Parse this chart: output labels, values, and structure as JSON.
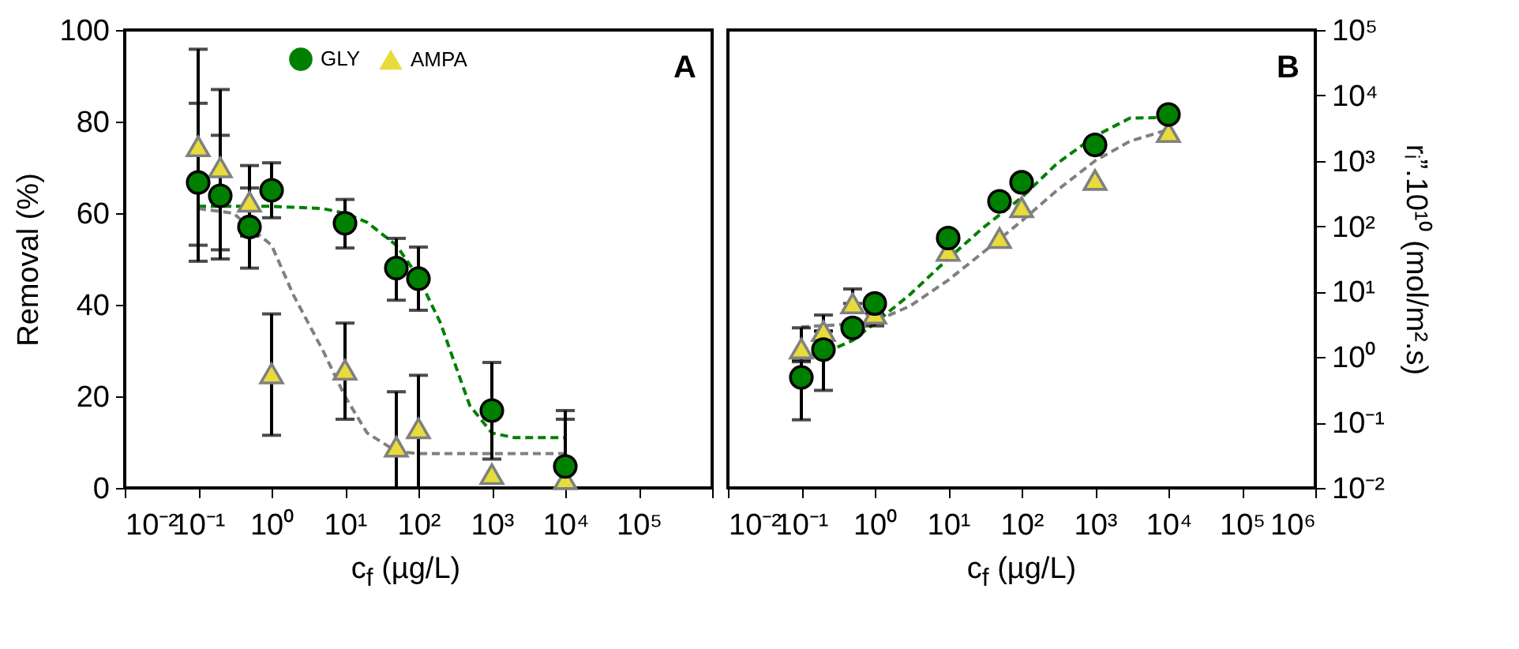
{
  "chart_data": [
    {
      "type": "scatter",
      "xlabel": "c$_{f}$ (µg/L)",
      "ylabel": "Removal (%)",
      "x": [
        0.1,
        0.2,
        0.5,
        1,
        10,
        50,
        100,
        1000,
        10000
      ],
      "series": [
        {
          "name": "GLY",
          "marker": "circle",
          "color": "#008000",
          "values": [
            66.7,
            63.8,
            57,
            65,
            57.8,
            48,
            45.7,
            16.9,
            4.7
          ],
          "errors": [
            [
              53,
              84
            ],
            [
              52,
              77
            ],
            [
              48,
              65.5
            ],
            [
              59,
              71
            ],
            [
              52.4,
              63
            ],
            [
              41,
              54.5
            ],
            [
              38.8,
              52.6
            ],
            [
              6.3,
              27.4
            ],
            [
              0,
              15
            ]
          ]
        },
        {
          "name": "AMPA",
          "marker": "triangle",
          "color": "#e8dc3c",
          "values": [
            74.6,
            70,
            62.5,
            25,
            25.8,
            9,
            13,
            3,
            1.9
          ],
          "errors": [
            [
              49.5,
              95.8
            ],
            [
              50,
              87
            ],
            [
              55,
              70.4
            ],
            [
              11.5,
              38
            ],
            [
              15,
              36
            ],
            [
              0,
              21
            ],
            [
              0,
              24.6
            ],
            null,
            [
              0,
              16.9
            ]
          ]
        },
        {
          "type": "line",
          "line_style": "dashed",
          "color": "#008000",
          "x": [
            0.1,
            1,
            5,
            10,
            20,
            50,
            100,
            200,
            300,
            500,
            1000,
            2000,
            10000
          ],
          "values": [
            61.5,
            61.5,
            61,
            60,
            58,
            53,
            46,
            36,
            28,
            18,
            12,
            11,
            11
          ]
        },
        {
          "type": "line",
          "line_style": "dashed",
          "color": "#808080",
          "x": [
            0.1,
            0.3,
            0.5,
            1,
            2,
            5,
            10,
            20,
            50,
            100,
            1000,
            10000
          ],
          "values": [
            61,
            60,
            57,
            53,
            42,
            30,
            20,
            12,
            8,
            7.5,
            7.5,
            7.5
          ]
        }
      ],
      "xlim": [
        0.01,
        1000000
      ],
      "xticks": [
        {
          "value": 0.01,
          "label": "10⁻²"
        },
        {
          "value": 0.1,
          "label": "10⁻¹"
        },
        {
          "value": 1,
          "label": "10⁰"
        },
        {
          "value": 10,
          "label": "10¹"
        },
        {
          "value": 100,
          "label": "10²"
        },
        {
          "value": 1000,
          "label": "10³"
        },
        {
          "value": 10000,
          "label": "10⁴"
        },
        {
          "value": 100000,
          "label": "10⁵"
        },
        {
          "value": 1000000,
          "label": null
        }
      ],
      "ylim": [
        0,
        100
      ],
      "yticks": [
        0,
        20,
        40,
        60,
        80,
        100
      ],
      "log": "x",
      "legend": "top",
      "annotations": [
        "A"
      ]
    },
    {
      "type": "scatter",
      "xlabel": "c$_{f}$ (µg/L)",
      "ylabel": "rᵢ”.10¹⁰ (mol/m².s)",
      "x": [
        0.1,
        0.2,
        0.5,
        1,
        10,
        50,
        100,
        1000,
        10000
      ],
      "series": [
        {
          "marker": "circle",
          "color": "#008000",
          "values": [
            0.49,
            1.3,
            2.8,
            6.6,
            66,
            240,
            470,
            1750,
            5100
          ],
          "errors": [
            [
              0.11,
              0.85
            ],
            [
              0.31,
              2.5
            ],
            null,
            null,
            null,
            null,
            null,
            null,
            null
          ]
        },
        {
          "marker": "triangle",
          "color": "#e8dc3c",
          "values": [
            1.35,
            2.5,
            6.6,
            4.6,
            42,
            66,
            195,
            510,
            2750
          ],
          "errors": [
            [
              0.9,
              2.8
            ],
            [
              2.5,
              4.4
            ],
            [
              6.6,
              11
            ],
            [
              3,
              4.6
            ],
            null,
            null,
            null,
            null,
            null
          ]
        },
        {
          "type": "line",
          "line_style": "dashed",
          "color": "#008000",
          "x": [
            0.15,
            0.3,
            0.5,
            1,
            3,
            10,
            30,
            100,
            300,
            1000,
            3000,
            10000
          ],
          "values": [
            1,
            1.4,
            1.8,
            3.3,
            9,
            32,
            95,
            275,
            900,
            2400,
            4500,
            4600
          ]
        },
        {
          "type": "line",
          "line_style": "dashed",
          "color": "#808080",
          "x": [
            0.1,
            0.3,
            1,
            3,
            10,
            30,
            100,
            300,
            1000,
            3000,
            10000
          ],
          "values": [
            2.9,
            3.1,
            3.5,
            6,
            15,
            40,
            120,
            350,
            1000,
            2000,
            3000
          ]
        }
      ],
      "xlim": [
        0.01,
        1000000
      ],
      "xticks": [
        {
          "value": 0.01,
          "label": "10⁻²"
        },
        {
          "value": 0.1,
          "label": "10⁻¹"
        },
        {
          "value": 1,
          "label": "10⁰"
        },
        {
          "value": 10,
          "label": "10¹"
        },
        {
          "value": 100,
          "label": "10²"
        },
        {
          "value": 1000,
          "label": "10³"
        },
        {
          "value": 10000,
          "label": "10⁴"
        },
        {
          "value": 100000,
          "label": "10⁵"
        },
        {
          "value": 1000000,
          "label": "10⁶"
        }
      ],
      "ylim": [
        0.01,
        100000
      ],
      "yticks": [
        {
          "value": 0.01,
          "label": "10⁻²"
        },
        {
          "value": 0.1,
          "label": "10⁻¹"
        },
        {
          "value": 1,
          "label": "10⁰"
        },
        {
          "value": 10,
          "label": "10¹"
        },
        {
          "value": 100,
          "label": "10²"
        },
        {
          "value": 1000,
          "label": "10³"
        },
        {
          "value": 10000,
          "label": "10⁴"
        },
        {
          "value": 100000,
          "label": "10⁵"
        }
      ],
      "log": "xy",
      "annotations": [
        "B"
      ]
    }
  ]
}
